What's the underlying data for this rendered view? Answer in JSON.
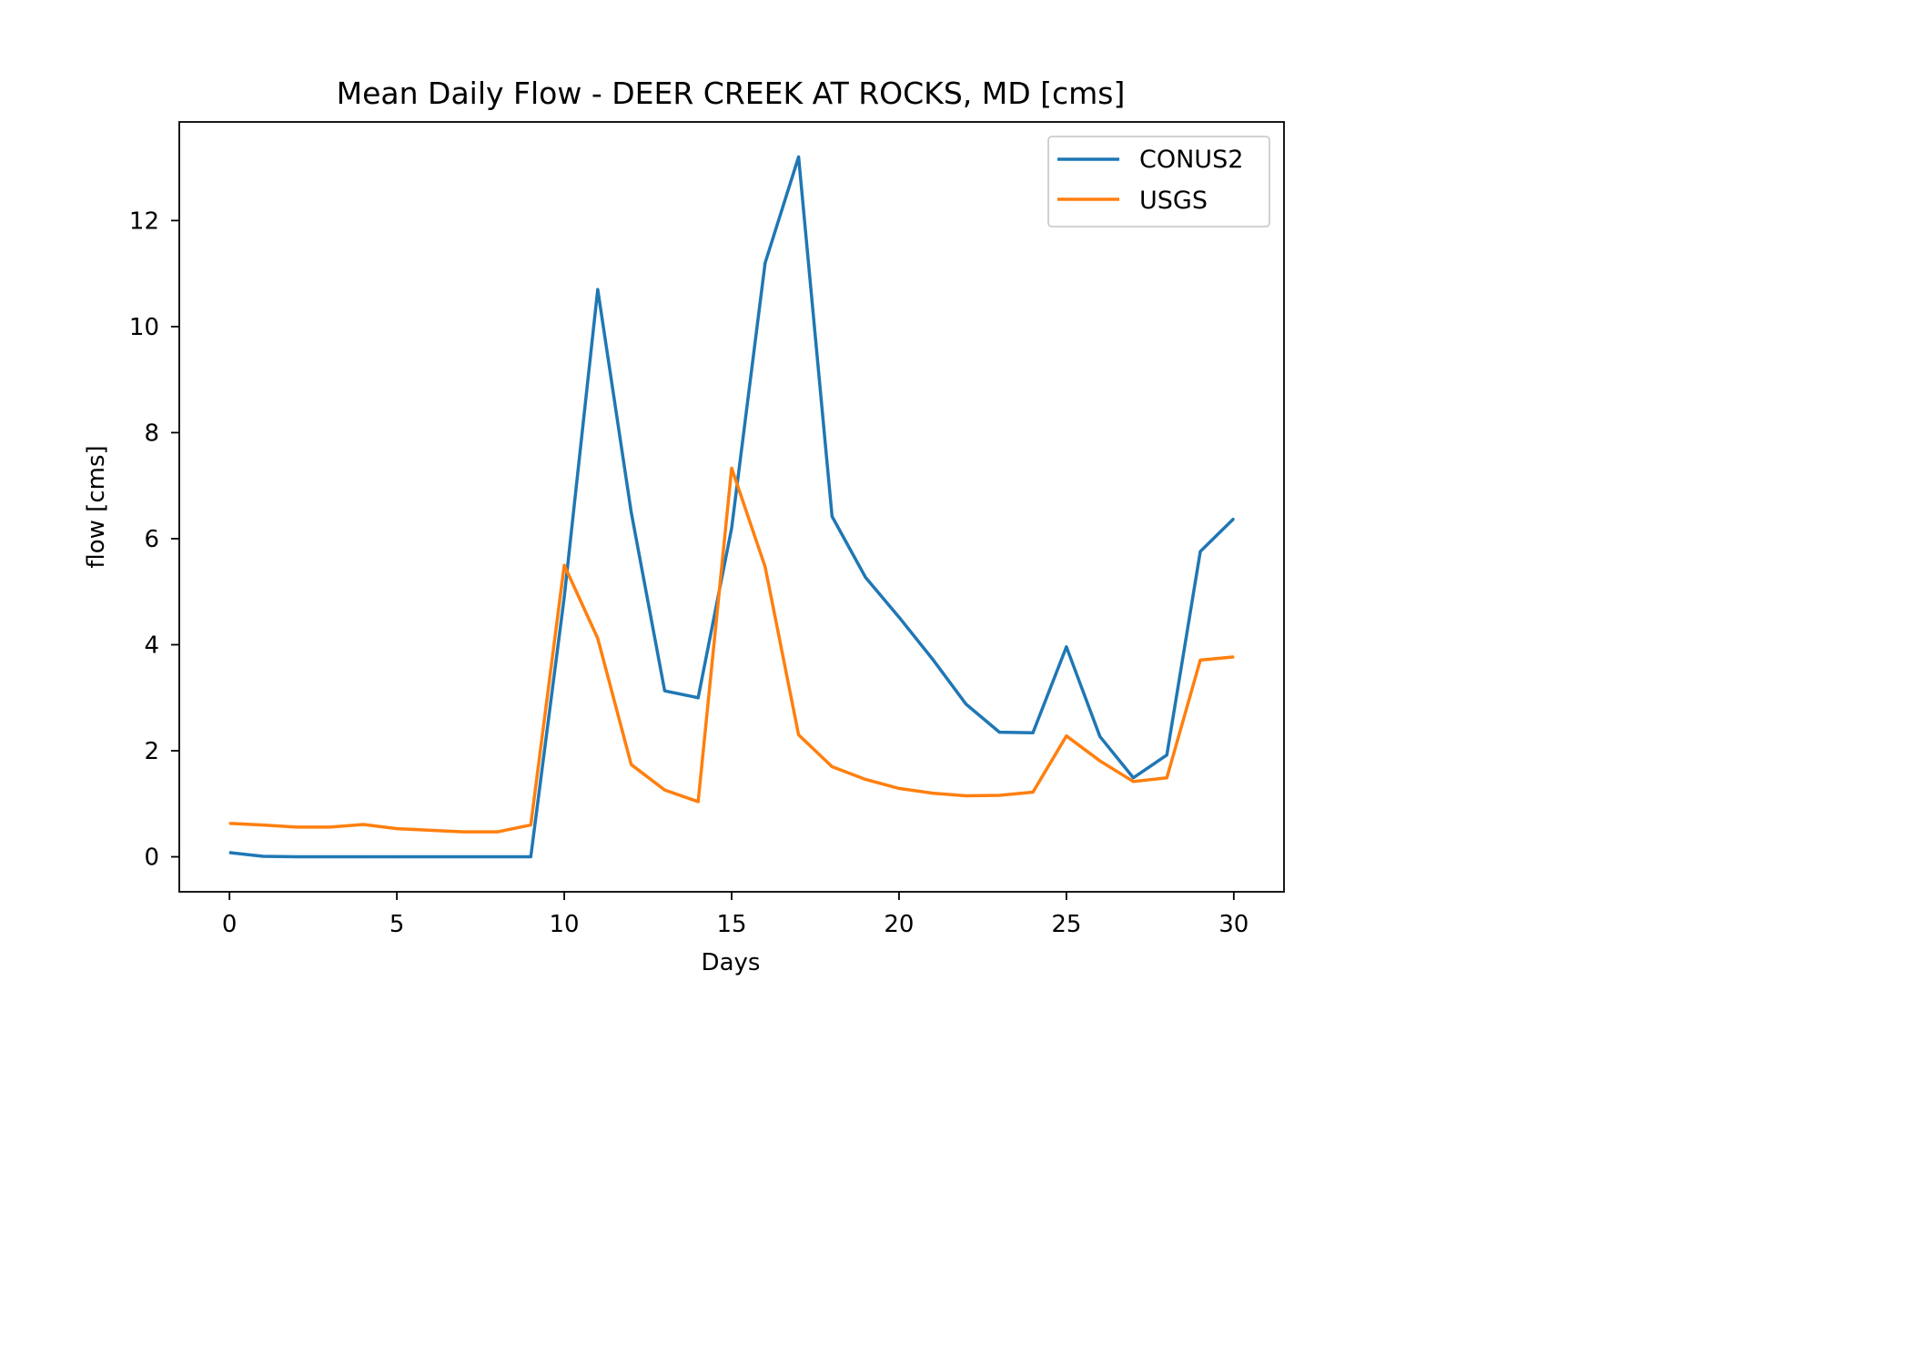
{
  "chart_data": {
    "type": "line",
    "title": "Mean Daily Flow - DEER CREEK AT ROCKS, MD [cms]",
    "xlabel": "Days",
    "ylabel": "flow [cms]",
    "xlim": [
      -1.5,
      31.5
    ],
    "ylim": [
      -0.66,
      13.86
    ],
    "xticks": [
      0,
      5,
      10,
      15,
      20,
      25,
      30
    ],
    "yticks": [
      0,
      2,
      4,
      6,
      8,
      10,
      12
    ],
    "grid": false,
    "legend_position": "top-right",
    "x": [
      0,
      1,
      2,
      3,
      4,
      5,
      6,
      7,
      8,
      9,
      10,
      11,
      12,
      13,
      14,
      15,
      16,
      17,
      18,
      19,
      20,
      21,
      22,
      23,
      24,
      25,
      26,
      27,
      28,
      29,
      30
    ],
    "series": [
      {
        "name": "CONUS2",
        "color": "#1f77b4",
        "values": [
          0.08,
          0.01,
          0.0,
          0.0,
          0.0,
          0.0,
          0.0,
          0.0,
          0.0,
          0.0,
          4.9,
          10.7,
          6.5,
          3.13,
          3.0,
          6.2,
          11.2,
          13.2,
          6.42,
          5.27,
          4.52,
          3.73,
          2.88,
          2.35,
          2.34,
          3.96,
          2.27,
          1.49,
          1.92,
          5.76,
          6.38
        ]
      },
      {
        "name": "USGS",
        "color": "#ff7f0e",
        "values": [
          0.63,
          0.6,
          0.56,
          0.56,
          0.61,
          0.53,
          0.5,
          0.47,
          0.47,
          0.6,
          5.5,
          4.12,
          1.74,
          1.26,
          1.04,
          7.33,
          5.47,
          2.3,
          1.7,
          1.46,
          1.29,
          1.2,
          1.15,
          1.16,
          1.22,
          2.28,
          1.81,
          1.42,
          1.49,
          3.71,
          3.77
        ]
      }
    ]
  }
}
